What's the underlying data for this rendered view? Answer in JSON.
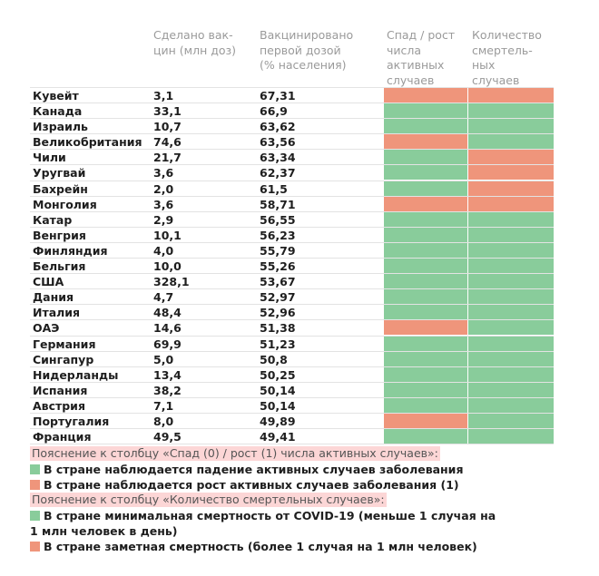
{
  "colors": {
    "growth": "#ef957b",
    "decline": "#89cc9b"
  },
  "chart_data": {
    "type": "table",
    "columns": [
      "",
      "Сделано вак-цин (млн доз)",
      "Вакцинировано первой дозой (% населения)",
      "Спад / рост числа активных случаев",
      "Количество смертель-ных случаев"
    ],
    "header_lines": {
      "c1": [
        "Сделано вак-",
        "цин (млн доз)"
      ],
      "c2": [
        "Вакцинировано",
        "первой дозой",
        "(% населения)"
      ],
      "c3": [
        "Спад / рост",
        "числа",
        "активных",
        "случаев"
      ],
      "c4": [
        "Количество",
        "смертель-",
        "ных",
        "случаев"
      ]
    },
    "rows": [
      {
        "country": "Кувейт",
        "doses": "3,1",
        "first_dose": "67,31",
        "active": 1,
        "deaths": 1
      },
      {
        "country": "Канада",
        "doses": "33,1",
        "first_dose": "66,9",
        "active": 0,
        "deaths": 0
      },
      {
        "country": "Израиль",
        "doses": "10,7",
        "first_dose": "63,62",
        "active": 0,
        "deaths": 0
      },
      {
        "country": "Великобритания",
        "doses": "74,6",
        "first_dose": "63,56",
        "active": 1,
        "deaths": 0
      },
      {
        "country": "Чили",
        "doses": "21,7",
        "first_dose": "63,34",
        "active": 0,
        "deaths": 1
      },
      {
        "country": "Уругвай",
        "doses": "3,6",
        "first_dose": "62,37",
        "active": 0,
        "deaths": 1
      },
      {
        "country": "Бахрейн",
        "doses": "2,0",
        "first_dose": "61,5",
        "active": 0,
        "deaths": 1
      },
      {
        "country": "Монголия",
        "doses": "3,6",
        "first_dose": "58,71",
        "active": 1,
        "deaths": 1
      },
      {
        "country": "Катар",
        "doses": "2,9",
        "first_dose": "56,55",
        "active": 0,
        "deaths": 0
      },
      {
        "country": "Венгрия",
        "doses": "10,1",
        "first_dose": "56,23",
        "active": 0,
        "deaths": 0
      },
      {
        "country": "Финляндия",
        "doses": "4,0",
        "first_dose": "55,79",
        "active": 0,
        "deaths": 0
      },
      {
        "country": "Бельгия",
        "doses": "10,0",
        "first_dose": "55,26",
        "active": 0,
        "deaths": 0
      },
      {
        "country": "США",
        "doses": "328,1",
        "first_dose": "53,67",
        "active": 0,
        "deaths": 0
      },
      {
        "country": "Дания",
        "doses": "4,7",
        "first_dose": "52,97",
        "active": 0,
        "deaths": 0
      },
      {
        "country": "Италия",
        "doses": "48,4",
        "first_dose": "52,96",
        "active": 0,
        "deaths": 0
      },
      {
        "country": "ОАЭ",
        "doses": "14,6",
        "first_dose": "51,38",
        "active": 1,
        "deaths": 0
      },
      {
        "country": "Германия",
        "doses": "69,9",
        "first_dose": "51,23",
        "active": 0,
        "deaths": 0
      },
      {
        "country": "Сингапур",
        "doses": "5,0",
        "first_dose": "50,8",
        "active": 0,
        "deaths": 0
      },
      {
        "country": "Нидерланды",
        "doses": "13,4",
        "first_dose": "50,25",
        "active": 0,
        "deaths": 0
      },
      {
        "country": "Испания",
        "doses": "38,2",
        "first_dose": "50,14",
        "active": 0,
        "deaths": 0
      },
      {
        "country": "Австрия",
        "doses": "7,1",
        "first_dose": "50,14",
        "active": 0,
        "deaths": 0
      },
      {
        "country": "Португалия",
        "doses": "8,0",
        "first_dose": "49,89",
        "active": 1,
        "deaths": 0
      },
      {
        "country": "Франция",
        "doses": "49,5",
        "first_dose": "49,41",
        "active": 0,
        "deaths": 0
      }
    ]
  },
  "legend": {
    "note1": "Пояснение к столбцу «Спад (0) / рост (1) числа активных случаев»:",
    "active_decline": "В стране наблюдается падение активных случаев заболевания",
    "active_growth": "В стране наблюдается рост активных случаев заболевания (1)",
    "note2": "Пояснение к столбцу «Количество смертельных случаев»:",
    "deaths_low": "В стране минимальная смертность от COVID-19 (меньше 1 случая на 1 млн человек в день)",
    "deaths_high": "В стране заметная смертность (более 1 случая на 1 млн человек)"
  }
}
